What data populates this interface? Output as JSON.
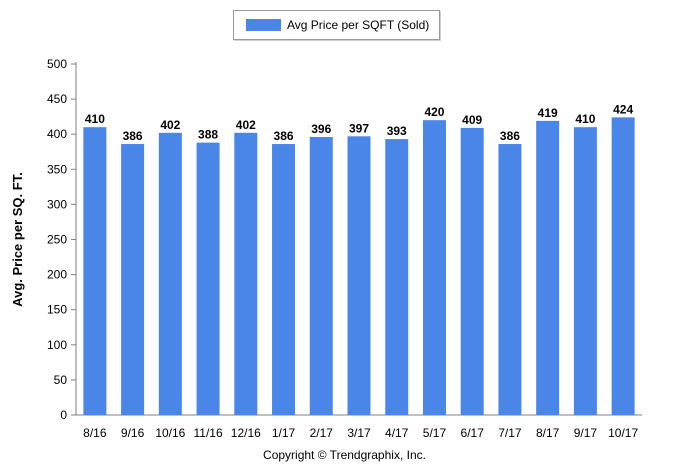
{
  "chart_data": {
    "type": "bar",
    "categories": [
      "8/16",
      "9/16",
      "10/16",
      "11/16",
      "12/16",
      "1/17",
      "2/17",
      "3/17",
      "4/17",
      "5/17",
      "6/17",
      "7/17",
      "8/17",
      "9/17",
      "10/17"
    ],
    "series": [
      {
        "name": "Avg Price per SQFT (Sold)",
        "values": [
          410,
          386,
          402,
          388,
          402,
          386,
          396,
          397,
          393,
          420,
          409,
          386,
          419,
          410,
          424
        ]
      }
    ],
    "ylabel": "Avg. Price per SQ. FT.",
    "xlabel": "",
    "ylim": [
      0,
      500
    ],
    "yticks": [
      0,
      50,
      100,
      150,
      200,
      250,
      300,
      350,
      400,
      450,
      500
    ],
    "grid": false,
    "legend_position": "top-center",
    "bar_color": "#4a86e8"
  },
  "footer": {
    "copyright": "Copyright © Trendgraphix, Inc."
  }
}
